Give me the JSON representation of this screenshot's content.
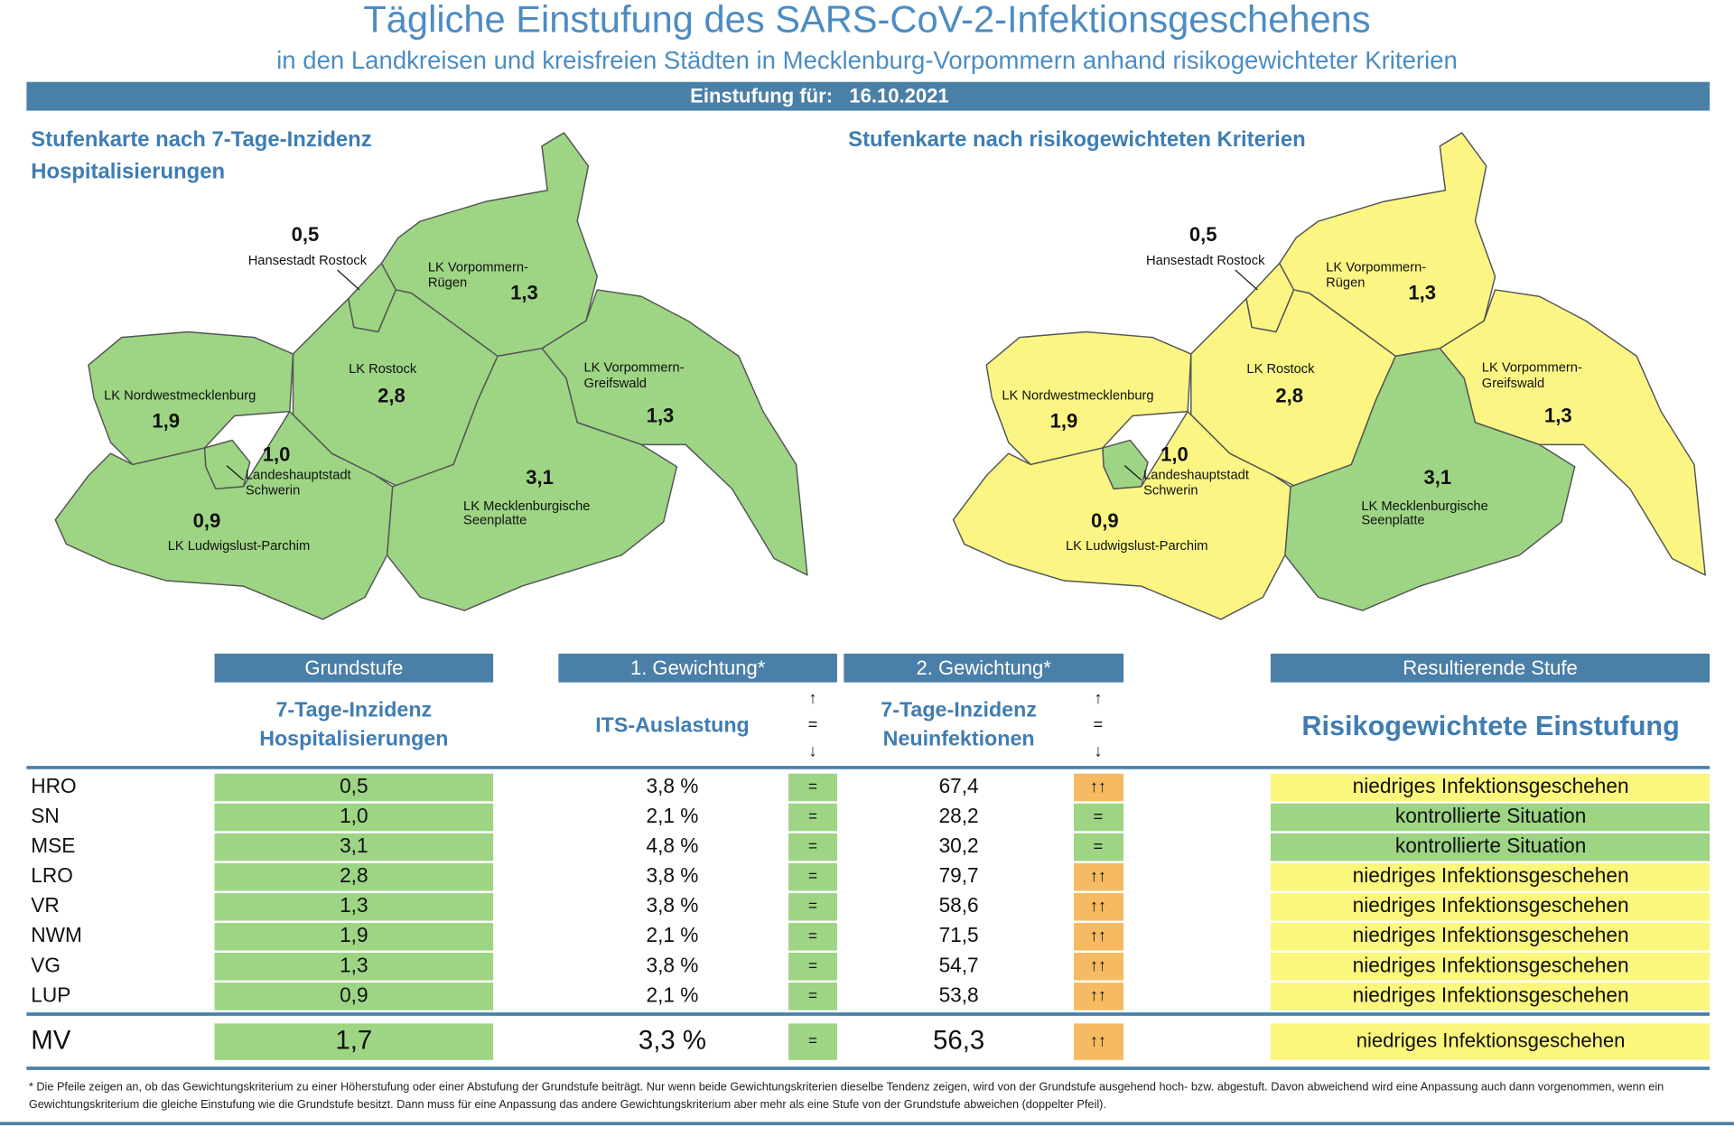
{
  "header": {
    "title": "Tägliche Einstufung des SARS-CoV-2-Infektionsgeschehens",
    "subtitle": "in den Landkreisen und kreisfreien Städten in Mecklenburg-Vorpommern anhand risikogewichteter Kriterien",
    "date_label": "Einstufung für:",
    "date": "16.10.2021"
  },
  "maps": [
    {
      "title_lines": [
        "Stufenkarte nach 7-Tage-Inzidenz",
        "Hospitalisierungen"
      ],
      "region_colors": [
        "#9dd584",
        "#9dd584",
        "#9dd584",
        "#9dd584",
        "#9dd584",
        "#9dd584",
        "#9dd584",
        "#9dd584"
      ]
    },
    {
      "title_lines": [
        "Stufenkarte nach risikogewichteten Kriterien"
      ],
      "region_colors": [
        "#fbf684",
        "#fbf684",
        "#fbf684",
        "#fbf684",
        "#fbf684",
        "#9dd584",
        "#9dd584",
        "#fbf684"
      ]
    }
  ],
  "regions": [
    {
      "name_lines": [
        "Hansestadt Rostock"
      ],
      "value": "0,5"
    },
    {
      "name_lines": [
        "LK Vorpommern-",
        "Rügen"
      ],
      "value": "1,3"
    },
    {
      "name_lines": [
        "LK Rostock"
      ],
      "value": "2,8"
    },
    {
      "name_lines": [
        "LK Vorpommern-",
        "Greifswald"
      ],
      "value": "1,3"
    },
    {
      "name_lines": [
        "LK Nordwestmecklenburg"
      ],
      "value": "1,9"
    },
    {
      "name_lines": [
        "Landeshauptstadt",
        "Schwerin"
      ],
      "value": "1,0"
    },
    {
      "name_lines": [
        "LK Mecklenburgische",
        "Seenplatte"
      ],
      "value": "3,1"
    },
    {
      "name_lines": [
        "LK Ludwigslust-Parchim"
      ],
      "value": "0,9"
    }
  ],
  "table": {
    "headers": [
      "Grundstufe",
      "1. Gewichtung*",
      "2. Gewichtung*",
      "Resultierende Stufe"
    ],
    "sub_grund": [
      "7-Tage-Inzidenz",
      "Hospitalisierungen"
    ],
    "sub_its": "ITS-Auslastung",
    "sub_inz": [
      "7-Tage-Inzidenz",
      "Neuinfektionen"
    ],
    "arrows": [
      "↑",
      "=",
      "↓"
    ],
    "sub_result": "Risikogewichtete Einstufung",
    "rows": [
      {
        "code": "HRO",
        "grund": "0,5",
        "its": "3,8 %",
        "its_trend": "=",
        "its_color": "#9dd584",
        "inz": "67,4",
        "inz_trend": "↑↑",
        "inz_color": "#f6bb62",
        "result": "niedriges Infektionsgeschehen",
        "result_color": "#fbf67c"
      },
      {
        "code": "SN",
        "grund": "1,0",
        "its": "2,1 %",
        "its_trend": "=",
        "its_color": "#9dd584",
        "inz": "28,2",
        "inz_trend": "=",
        "inz_color": "#9dd584",
        "result": "kontrollierte Situation",
        "result_color": "#9dd584"
      },
      {
        "code": "MSE",
        "grund": "3,1",
        "its": "4,8 %",
        "its_trend": "=",
        "its_color": "#9dd584",
        "inz": "30,2",
        "inz_trend": "=",
        "inz_color": "#9dd584",
        "result": "kontrollierte Situation",
        "result_color": "#9dd584"
      },
      {
        "code": "LRO",
        "grund": "2,8",
        "its": "3,8 %",
        "its_trend": "=",
        "its_color": "#9dd584",
        "inz": "79,7",
        "inz_trend": "↑↑",
        "inz_color": "#f6bb62",
        "result": "niedriges Infektionsgeschehen",
        "result_color": "#fbf67c"
      },
      {
        "code": "VR",
        "grund": "1,3",
        "its": "3,8 %",
        "its_trend": "=",
        "its_color": "#9dd584",
        "inz": "58,6",
        "inz_trend": "↑↑",
        "inz_color": "#f6bb62",
        "result": "niedriges Infektionsgeschehen",
        "result_color": "#fbf67c"
      },
      {
        "code": "NWM",
        "grund": "1,9",
        "its": "2,1 %",
        "its_trend": "=",
        "its_color": "#9dd584",
        "inz": "71,5",
        "inz_trend": "↑↑",
        "inz_color": "#f6bb62",
        "result": "niedriges Infektionsgeschehen",
        "result_color": "#fbf67c"
      },
      {
        "code": "VG",
        "grund": "1,3",
        "its": "3,8 %",
        "its_trend": "=",
        "its_color": "#9dd584",
        "inz": "54,7",
        "inz_trend": "↑↑",
        "inz_color": "#f6bb62",
        "result": "niedriges Infektionsgeschehen",
        "result_color": "#fbf67c"
      },
      {
        "code": "LUP",
        "grund": "0,9",
        "its": "2,1 %",
        "its_trend": "=",
        "its_color": "#9dd584",
        "inz": "53,8",
        "inz_trend": "↑↑",
        "inz_color": "#f6bb62",
        "result": "niedriges Infektionsgeschehen",
        "result_color": "#fbf67c"
      }
    ],
    "total": {
      "code": "MV",
      "grund": "1,7",
      "its": "3,3 %",
      "its_trend": "=",
      "its_color": "#9dd584",
      "inz": "56,3",
      "inz_trend": "↑↑",
      "inz_color": "#f6bb62",
      "result": "niedriges Infektionsgeschehen",
      "result_color": "#fbf67c"
    }
  },
  "footnote": "* Die Pfeile zeigen an, ob das Gewichtungskriterium zu einer Höherstufung oder einer Abstufung der Grundstufe beiträgt. Nur wenn beide Gewichtungskriterien dieselbe Tendenz zeigen, wird von der Grundstufe ausgehend hoch- bzw. abgestuft.  Davon abweichend wird eine Anpassung auch dann vorgenommen, wenn ein Gewichtungskriterium die gleiche Einstufung wie die Grundstufe besitzt. Dann muss für eine Anpassung das andere Gewichtungskriterium aber mehr als eine Stufe von der Grundstufe abweichen (doppelter Pfeil)."
}
